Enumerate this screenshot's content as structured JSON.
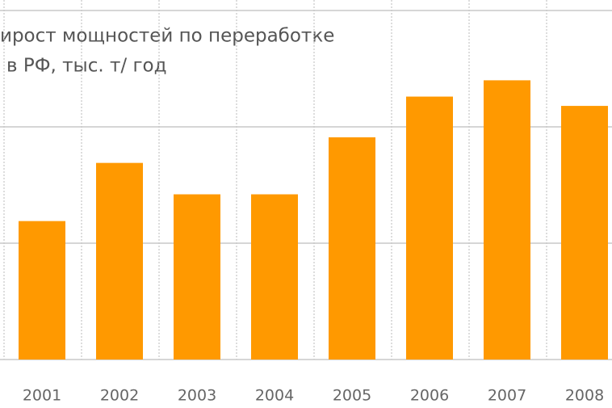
{
  "chart_data": {
    "type": "bar",
    "title": [
      "ирост мощностей по переработке",
      "в РФ, тыс. т/ год"
    ],
    "categories": [
      "2001",
      "2002",
      "2003",
      "2004",
      "2005",
      "2006",
      "2007",
      "2008"
    ],
    "values": [
      1.19,
      1.69,
      1.42,
      1.42,
      1.91,
      2.26,
      2.4,
      2.18
    ],
    "color": "#ff9900",
    "ylim": [
      0,
      3
    ],
    "yticks": [
      0,
      1,
      2,
      3
    ],
    "grid": true
  }
}
